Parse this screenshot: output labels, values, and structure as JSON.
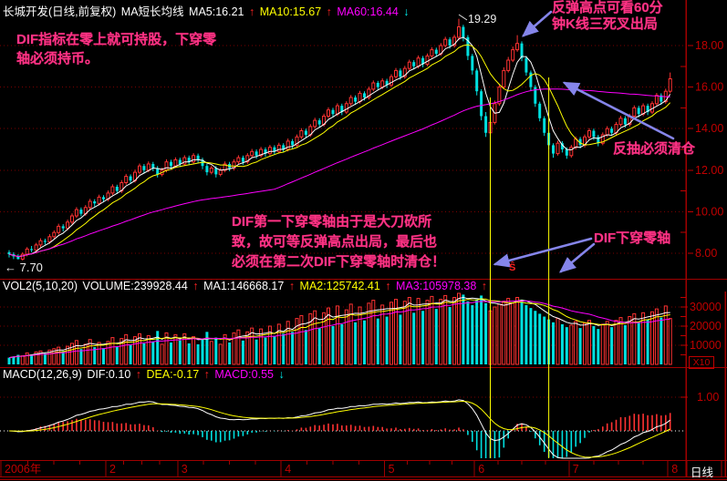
{
  "glyphs": {
    "up_arrow": "↑",
    "down_arrow": "↓"
  },
  "header": {
    "title": "长城开发(日线,前复权)",
    "subtitle": "MA短长均线",
    "ma5": "MA5:16.21",
    "ma10": "MA10:15.67",
    "ma60": "MA60:16.44"
  },
  "vol_header": {
    "name": "VOL2(5,10,20)",
    "volume": "VOLUME:239928.44",
    "ma1": "MA1:146668.17",
    "ma2": "MA2:125742.41",
    "ma3": "MA3:105978.38"
  },
  "macd_header": {
    "name": "MACD(12,26,9)",
    "dif": "DIF:0.10",
    "dea": "DEA:-0.17",
    "macd": "MACD:0.55"
  },
  "annotations": {
    "hold_line1": "DIF指标在零上就可持股，下穿零",
    "hold_line2": "轴必须持币。",
    "rebound_line1": "反弹高点可看60分",
    "rebound_line2": "钟K线三死叉出局",
    "pullback": "反抽必须清仓",
    "mid_line1": "DIF第一下穿零轴由于是大刀砍所",
    "mid_line2": "致，故可等反弹高点出局，最后也",
    "mid_line3": "必须在第二次DIF下穿零轴时清仓！",
    "dif_cross": "DIF下穿零轴",
    "peak_price": "19.29",
    "start_low": "← 7.70",
    "split_marker": "Ŝ"
  },
  "axes": {
    "price_labels": [
      "18.00",
      "16.00",
      "14.00",
      "12.00",
      "10.00",
      "8.00"
    ],
    "price_values": [
      18,
      16,
      14,
      12,
      10,
      8
    ],
    "price_minor_values": [
      17,
      15,
      13,
      11,
      9
    ],
    "volume_labels": [
      "30000",
      "20000",
      "10000"
    ],
    "volume_values": [
      30000,
      20000,
      10000
    ],
    "volume_minor_values": [
      35000,
      25000,
      15000,
      5000
    ],
    "macd_labels": [
      "1.00"
    ],
    "macd_values": [
      1
    ],
    "x_ticks": [
      {
        "label": "2006年",
        "day": 0
      },
      {
        "label": "2",
        "day": 22
      },
      {
        "label": "3",
        "day": 38
      },
      {
        "label": "4",
        "day": 61
      },
      {
        "label": "5",
        "day": 84
      },
      {
        "label": "6",
        "day": 104
      },
      {
        "label": "7",
        "day": 125
      },
      {
        "label": "8",
        "day": 147
      }
    ],
    "period": "日线",
    "volume_multiplier": "X10"
  },
  "colors": {
    "up": "#ff3232",
    "down": "#00e0e0",
    "ma5": "#ffffff",
    "ma10": "#ffff00",
    "ma60": "#ff00ff",
    "vol_ma1": "#ffffff",
    "vol_ma2": "#ffff00",
    "vol_ma3": "#ff00ff",
    "dif_line": "#ffffff",
    "dea_line": "#ffff00",
    "grid": "#7a0000",
    "axis_line": "#a00000",
    "axis_text": "#c00000",
    "annotation": "#ff3385",
    "arrow": "#8585ea",
    "event_line": "#ffff00",
    "zero_line": "#ffffff"
  },
  "chart_data": {
    "type": "candlestick",
    "title": "长城开发(日线,前复权)",
    "panes": [
      "price",
      "volume",
      "macd"
    ],
    "price_pane": {
      "ylim": [
        7.0,
        19.6
      ],
      "gridlines": [
        8,
        10,
        12,
        14,
        16,
        18
      ],
      "ma_periods": [
        5,
        10,
        60
      ],
      "readout": {
        "MA5": 16.21,
        "MA10": 15.67,
        "MA60": 16.44
      },
      "peak_high": 19.29,
      "period_low": 7.7
    },
    "volume_pane": {
      "gridlines": [
        10000,
        20000,
        30000
      ],
      "unit_multiplier": "X10",
      "ma_periods": [
        5,
        10,
        20
      ],
      "readout": {
        "VOLUME": 239928.44,
        "MA1": 146668.17,
        "MA2": 125742.41,
        "MA3": 105978.38
      }
    },
    "macd_pane": {
      "params": [
        12,
        26,
        9
      ],
      "gridline": 1.0,
      "readout": {
        "DIF": 0.1,
        "DEA": -0.17,
        "MACD": 0.55
      }
    },
    "x_axis": {
      "start": "2006-01",
      "end": "2006-08",
      "tick_labels": [
        "2006年",
        "2",
        "3",
        "4",
        "5",
        "6",
        "7",
        "8"
      ]
    },
    "event_vline_days": [
      107,
      120
    ],
    "candles": [
      [
        8.05,
        8.15,
        7.8,
        7.95
      ],
      [
        7.95,
        8.05,
        7.72,
        7.85
      ],
      [
        7.85,
        7.95,
        7.7,
        7.72
      ],
      [
        7.72,
        8.05,
        7.65,
        7.95
      ],
      [
        7.95,
        8.3,
        7.85,
        8.2
      ],
      [
        8.2,
        8.35,
        8.05,
        8.15
      ],
      [
        8.15,
        8.5,
        8.05,
        8.4
      ],
      [
        8.4,
        8.72,
        8.3,
        8.6
      ],
      [
        8.6,
        8.7,
        8.42,
        8.55
      ],
      [
        8.55,
        8.92,
        8.45,
        8.8
      ],
      [
        8.8,
        9.1,
        8.7,
        9.0
      ],
      [
        9.0,
        9.42,
        8.9,
        9.3
      ],
      [
        9.3,
        9.4,
        9.05,
        9.2
      ],
      [
        9.2,
        9.62,
        9.1,
        9.5
      ],
      [
        9.5,
        9.92,
        9.4,
        9.8
      ],
      [
        9.8,
        10.22,
        9.7,
        10.1
      ],
      [
        10.1,
        10.2,
        9.78,
        9.9
      ],
      [
        9.9,
        10.32,
        9.8,
        10.2
      ],
      [
        10.2,
        10.62,
        10.1,
        10.5
      ],
      [
        10.5,
        10.6,
        10.25,
        10.4
      ],
      [
        10.4,
        10.82,
        10.3,
        10.7
      ],
      [
        10.7,
        10.8,
        10.45,
        10.6
      ],
      [
        10.6,
        11.02,
        10.5,
        10.9
      ],
      [
        10.9,
        11.32,
        10.8,
        11.2
      ],
      [
        11.2,
        11.3,
        10.85,
        11.0
      ],
      [
        11.0,
        11.52,
        10.9,
        11.4
      ],
      [
        11.4,
        11.82,
        11.3,
        11.7
      ],
      [
        11.7,
        11.8,
        11.35,
        11.5
      ],
      [
        11.5,
        12.02,
        11.4,
        11.9
      ],
      [
        11.9,
        12.32,
        11.8,
        12.2
      ],
      [
        12.2,
        12.3,
        11.85,
        12.0
      ],
      [
        12.0,
        12.42,
        11.9,
        12.3
      ],
      [
        12.3,
        12.4,
        11.95,
        12.1
      ],
      [
        12.1,
        12.2,
        11.65,
        11.8
      ],
      [
        11.8,
        12.12,
        11.7,
        12.0
      ],
      [
        12.0,
        12.52,
        11.9,
        12.4
      ],
      [
        12.4,
        12.5,
        12.05,
        12.2
      ],
      [
        12.2,
        12.62,
        12.1,
        12.5
      ],
      [
        12.5,
        12.6,
        12.15,
        12.3
      ],
      [
        12.3,
        12.72,
        12.2,
        12.6
      ],
      [
        12.6,
        12.7,
        12.25,
        12.4
      ],
      [
        12.4,
        12.82,
        12.3,
        12.7
      ],
      [
        12.7,
        12.8,
        12.35,
        12.5
      ],
      [
        12.5,
        12.6,
        12.05,
        12.2
      ],
      [
        12.2,
        12.3,
        11.75,
        11.9
      ],
      [
        11.9,
        12.22,
        11.8,
        12.1
      ],
      [
        12.1,
        12.2,
        11.65,
        11.8
      ],
      [
        11.8,
        12.12,
        11.7,
        12.0
      ],
      [
        12.0,
        12.42,
        11.9,
        12.3
      ],
      [
        12.3,
        12.4,
        11.95,
        12.1
      ],
      [
        12.1,
        12.52,
        12.0,
        12.4
      ],
      [
        12.4,
        12.72,
        12.3,
        12.6
      ],
      [
        12.6,
        12.7,
        12.25,
        12.4
      ],
      [
        12.4,
        12.82,
        12.3,
        12.7
      ],
      [
        12.7,
        13.02,
        12.6,
        12.9
      ],
      [
        12.9,
        13.0,
        12.55,
        12.7
      ],
      [
        12.7,
        13.12,
        12.6,
        13.0
      ],
      [
        13.0,
        13.1,
        12.65,
        12.8
      ],
      [
        12.8,
        13.22,
        12.7,
        13.1
      ],
      [
        13.1,
        13.2,
        12.75,
        12.9
      ],
      [
        12.9,
        13.32,
        12.8,
        13.2
      ],
      [
        13.2,
        13.3,
        12.85,
        13.0
      ],
      [
        13.0,
        13.52,
        12.9,
        13.4
      ],
      [
        13.4,
        13.5,
        13.05,
        13.2
      ],
      [
        13.2,
        13.72,
        13.1,
        13.6
      ],
      [
        13.6,
        14.02,
        13.5,
        13.9
      ],
      [
        13.9,
        14.0,
        13.55,
        13.7
      ],
      [
        13.7,
        14.22,
        13.6,
        14.1
      ],
      [
        14.1,
        14.52,
        14.0,
        14.4
      ],
      [
        14.4,
        14.5,
        14.05,
        14.2
      ],
      [
        14.2,
        14.72,
        14.1,
        14.6
      ],
      [
        14.6,
        15.02,
        14.5,
        14.9
      ],
      [
        14.9,
        15.0,
        14.55,
        14.7
      ],
      [
        14.7,
        15.22,
        14.6,
        15.1
      ],
      [
        15.1,
        15.2,
        14.65,
        14.8
      ],
      [
        14.8,
        15.32,
        14.7,
        15.2
      ],
      [
        15.2,
        15.62,
        15.1,
        15.5
      ],
      [
        15.5,
        15.6,
        15.15,
        15.3
      ],
      [
        15.3,
        15.82,
        15.2,
        15.7
      ],
      [
        15.7,
        15.8,
        15.35,
        15.5
      ],
      [
        15.5,
        16.02,
        15.4,
        15.9
      ],
      [
        15.9,
        16.32,
        15.8,
        16.2
      ],
      [
        16.2,
        16.3,
        15.85,
        16.0
      ],
      [
        16.0,
        16.42,
        15.9,
        16.3
      ],
      [
        16.3,
        16.4,
        15.95,
        16.1
      ],
      [
        16.1,
        16.62,
        16.0,
        16.5
      ],
      [
        16.5,
        16.92,
        16.4,
        16.8
      ],
      [
        16.8,
        16.9,
        16.35,
        16.5
      ],
      [
        16.5,
        17.02,
        16.4,
        16.9
      ],
      [
        16.9,
        17.32,
        16.8,
        17.2
      ],
      [
        17.2,
        17.3,
        16.85,
        17.0
      ],
      [
        17.0,
        17.52,
        16.9,
        17.4
      ],
      [
        17.4,
        17.5,
        16.95,
        17.1
      ],
      [
        17.1,
        17.62,
        17.0,
        17.5
      ],
      [
        17.5,
        17.92,
        17.4,
        17.8
      ],
      [
        17.8,
        17.9,
        17.45,
        17.6
      ],
      [
        17.6,
        18.12,
        17.5,
        18.0
      ],
      [
        18.0,
        18.42,
        17.9,
        18.3
      ],
      [
        18.3,
        18.4,
        17.85,
        18.0
      ],
      [
        18.0,
        18.52,
        17.9,
        18.4
      ],
      [
        18.4,
        19.29,
        18.25,
        18.9
      ],
      [
        18.9,
        19.0,
        18.2,
        18.4
      ],
      [
        18.4,
        18.5,
        17.3,
        17.5
      ],
      [
        17.5,
        17.6,
        16.6,
        16.8
      ],
      [
        16.8,
        16.9,
        15.6,
        15.8
      ],
      [
        15.8,
        15.9,
        14.4,
        14.6
      ],
      [
        14.6,
        14.8,
        13.6,
        13.8
      ],
      [
        13.8,
        14.5,
        13.65,
        14.3
      ],
      [
        14.3,
        15.35,
        14.2,
        15.2
      ],
      [
        15.2,
        16.15,
        15.1,
        16.0
      ],
      [
        16.0,
        16.95,
        15.9,
        16.8
      ],
      [
        16.8,
        17.45,
        16.7,
        17.3
      ],
      [
        17.3,
        17.95,
        17.2,
        17.8
      ],
      [
        17.8,
        18.5,
        17.7,
        18.1
      ],
      [
        18.1,
        18.2,
        17.25,
        17.4
      ],
      [
        17.4,
        17.5,
        16.55,
        16.7
      ],
      [
        16.7,
        16.8,
        15.85,
        16.0
      ],
      [
        16.0,
        16.1,
        15.05,
        15.2
      ],
      [
        15.2,
        15.3,
        14.35,
        14.5
      ],
      [
        14.5,
        14.6,
        13.65,
        13.8
      ],
      [
        13.8,
        13.9,
        13.0,
        13.2
      ],
      [
        13.2,
        13.3,
        12.6,
        12.8
      ],
      [
        12.8,
        13.42,
        12.7,
        13.3
      ],
      [
        13.3,
        13.4,
        12.85,
        13.0
      ],
      [
        13.0,
        13.1,
        12.55,
        12.7
      ],
      [
        12.7,
        13.22,
        12.6,
        13.1
      ],
      [
        13.1,
        13.62,
        13.0,
        13.5
      ],
      [
        13.5,
        13.6,
        13.05,
        13.2
      ],
      [
        13.2,
        13.72,
        13.1,
        13.6
      ],
      [
        13.6,
        14.02,
        13.5,
        13.9
      ],
      [
        13.9,
        14.0,
        13.45,
        13.6
      ],
      [
        13.6,
        13.7,
        13.15,
        13.3
      ],
      [
        13.3,
        13.82,
        13.2,
        13.7
      ],
      [
        13.7,
        14.12,
        13.6,
        14.0
      ],
      [
        14.0,
        14.1,
        13.65,
        13.8
      ],
      [
        13.8,
        14.32,
        13.7,
        14.2
      ],
      [
        14.2,
        14.62,
        14.1,
        14.5
      ],
      [
        14.5,
        14.6,
        14.05,
        14.2
      ],
      [
        14.2,
        14.72,
        14.1,
        14.6
      ],
      [
        14.6,
        15.12,
        14.5,
        15.0
      ],
      [
        15.0,
        15.1,
        14.55,
        14.7
      ],
      [
        14.7,
        15.22,
        14.6,
        15.1
      ],
      [
        15.1,
        15.2,
        14.65,
        14.8
      ],
      [
        14.8,
        15.32,
        14.7,
        15.2
      ],
      [
        15.2,
        15.72,
        15.1,
        15.6
      ],
      [
        15.6,
        15.7,
        15.15,
        15.3
      ],
      [
        15.3,
        15.92,
        15.2,
        15.8
      ],
      [
        15.8,
        16.7,
        15.7,
        16.4
      ]
    ],
    "volumes": [
      3500,
      4200,
      5000,
      4500,
      6000,
      5200,
      6500,
      7000,
      5800,
      7500,
      8200,
      9000,
      7000,
      9500,
      11000,
      12500,
      8000,
      10500,
      13000,
      9000,
      11500,
      8500,
      12000,
      14000,
      9500,
      13500,
      15500,
      10000,
      14500,
      16000,
      11000,
      15000,
      12000,
      17500,
      10500,
      16500,
      11500,
      15500,
      12500,
      16000,
      11000,
      14500,
      10500,
      13500,
      17000,
      12000,
      14000,
      10500,
      15500,
      11500,
      16500,
      18000,
      12500,
      17000,
      19000,
      13000,
      18500,
      14000,
      20000,
      15000,
      21000,
      16000,
      22500,
      17000,
      24000,
      25500,
      18000,
      26500,
      28000,
      19000,
      27000,
      29500,
      20000,
      30500,
      21000,
      28500,
      31500,
      22000,
      30000,
      23000,
      32000,
      33500,
      24000,
      31000,
      25000,
      32500,
      34000,
      26000,
      33000,
      35000,
      27000,
      34500,
      28000,
      33500,
      35500,
      29000,
      34000,
      36000,
      30000,
      35000,
      37500,
      36500,
      33000,
      31000,
      34000,
      36000,
      32000,
      28000,
      30000,
      31500,
      33000,
      34500,
      32000,
      35000,
      33500,
      31000,
      29500,
      28000,
      26500,
      25000,
      23500,
      22000,
      24000,
      21000,
      19500,
      20500,
      22500,
      19000,
      21500,
      23000,
      20000,
      18500,
      21000,
      22500,
      19500,
      23000,
      24500,
      20500,
      25000,
      26500,
      22000,
      27000,
      23500,
      27500,
      29000,
      24500,
      30500,
      24000
    ]
  }
}
